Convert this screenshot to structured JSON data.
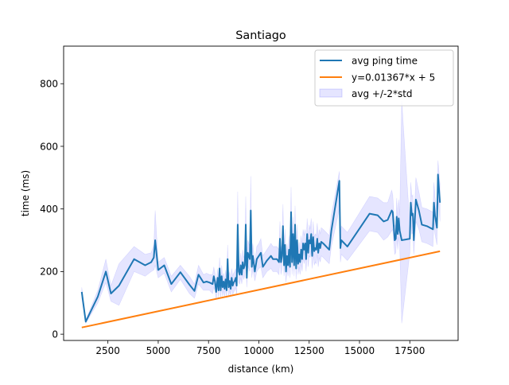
{
  "chart_data": {
    "type": "line",
    "title": "Santiago",
    "xlabel": "distance (km)",
    "ylabel": "time (ms)",
    "xlim": [
      300,
      19900
    ],
    "ylim": [
      -20,
      920
    ],
    "xticks": [
      2500,
      5000,
      7500,
      10000,
      12500,
      15000,
      17500
    ],
    "xtick_labels": [
      "2500",
      "5000",
      "7500",
      "10000",
      "12500",
      "15000",
      "17500"
    ],
    "yticks": [
      0,
      200,
      400,
      600,
      800
    ],
    "ytick_labels": [
      "0",
      "200",
      "400",
      "600",
      "800"
    ],
    "grid": false,
    "legend_position": "top-right",
    "colors": {
      "avg": "#1f77b4",
      "fit": "#ff7f0e",
      "band": "#0000ff"
    },
    "series": [
      {
        "name": "avg ping time",
        "x": [
          1200,
          1400,
          2000,
          2400,
          2650,
          3050,
          3800,
          4350,
          4650,
          4780,
          4850,
          5000,
          5300,
          5650,
          6100,
          6550,
          6800,
          7000,
          7250,
          7400,
          7550,
          7700,
          7760,
          7820,
          7880,
          7950,
          8000,
          8050,
          8100,
          8150,
          8200,
          8250,
          8300,
          8350,
          8400,
          8450,
          8500,
          8550,
          8600,
          8650,
          8700,
          8750,
          8800,
          8850,
          8900,
          8950,
          9000,
          9050,
          9100,
          9150,
          9200,
          9250,
          9300,
          9350,
          9400,
          9450,
          9500,
          9550,
          9600,
          9650,
          9700,
          9800,
          9900,
          10000,
          10100,
          10200,
          10400,
          10600,
          10700,
          10800,
          10900,
          11000,
          11050,
          11100,
          11150,
          11200,
          11250,
          11300,
          11350,
          11400,
          11450,
          11500,
          11550,
          11600,
          11650,
          11700,
          11750,
          11800,
          11850,
          11900,
          11950,
          12000,
          12050,
          12100,
          12150,
          12200,
          12250,
          12300,
          12350,
          12400,
          12450,
          12500,
          12550,
          12600,
          12650,
          12700,
          12750,
          12800,
          12850,
          12900,
          12950,
          13000,
          13050,
          13100,
          13200,
          13500,
          13600,
          14000,
          14050,
          14100,
          14400,
          15500,
          15900,
          16200,
          16400,
          16600,
          16650,
          16750,
          16800,
          16850,
          16900,
          16950,
          17000,
          17100,
          17500,
          17550,
          17600,
          17650,
          17700,
          17800,
          17950,
          18100,
          18350,
          18650,
          18700,
          18750,
          18850,
          18900,
          19000
        ],
        "y": [
          135,
          40,
          120,
          200,
          130,
          155,
          240,
          220,
          230,
          245,
          300,
          205,
          220,
          160,
          198,
          158,
          138,
          190,
          165,
          168,
          165,
          160,
          185,
          168,
          135,
          180,
          140,
          210,
          140,
          185,
          150,
          168,
          145,
          175,
          140,
          240,
          150,
          170,
          145,
          180,
          155,
          165,
          170,
          180,
          155,
          350,
          200,
          190,
          220,
          190,
          230,
          210,
          220,
          350,
          180,
          260,
          250,
          240,
          395,
          215,
          250,
          200,
          240,
          250,
          260,
          215,
          235,
          250,
          240,
          240,
          240,
          230,
          305,
          230,
          250,
          345,
          220,
          285,
          200,
          250,
          220,
          270,
          215,
          390,
          230,
          320,
          220,
          350,
          210,
          300,
          225,
          255,
          230,
          270,
          240,
          290,
          270,
          290,
          240,
          320,
          260,
          300,
          290,
          320,
          250,
          310,
          265,
          275,
          270,
          305,
          260,
          290,
          275,
          295,
          290,
          270,
          330,
          490,
          275,
          300,
          280,
          385,
          380,
          360,
          365,
          395,
          390,
          300,
          305,
          375,
          320,
          370,
          330,
          300,
          305,
          420,
          380,
          385,
          300,
          430,
          395,
          350,
          345,
          335,
          420,
          380,
          340,
          510,
          420
        ],
        "lo": [
          115,
          35,
          100,
          165,
          105,
          92,
          200,
          185,
          200,
          205,
          220,
          180,
          195,
          135,
          175,
          130,
          115,
          160,
          140,
          140,
          140,
          130,
          150,
          140,
          110,
          150,
          115,
          175,
          115,
          150,
          120,
          140,
          120,
          145,
          115,
          200,
          120,
          140,
          120,
          150,
          125,
          135,
          140,
          150,
          125,
          250,
          165,
          160,
          180,
          160,
          190,
          175,
          185,
          260,
          150,
          220,
          210,
          200,
          285,
          180,
          210,
          170,
          200,
          210,
          215,
          180,
          200,
          210,
          200,
          200,
          200,
          190,
          250,
          190,
          210,
          275,
          185,
          235,
          165,
          210,
          185,
          225,
          180,
          310,
          190,
          265,
          185,
          290,
          175,
          250,
          190,
          215,
          190,
          225,
          200,
          245,
          225,
          245,
          200,
          270,
          215,
          250,
          245,
          270,
          210,
          260,
          220,
          230,
          225,
          255,
          215,
          245,
          230,
          250,
          245,
          225,
          280,
          400,
          230,
          255,
          235,
          330,
          325,
          300,
          310,
          330,
          335,
          255,
          260,
          315,
          270,
          310,
          280,
          35,
          260,
          355,
          320,
          325,
          255,
          360,
          335,
          295,
          290,
          280,
          355,
          320,
          285,
          440,
          360
        ],
        "hi": [
          150,
          45,
          140,
          240,
          155,
          225,
          280,
          255,
          260,
          285,
          395,
          230,
          245,
          185,
          220,
          185,
          160,
          220,
          190,
          195,
          190,
          190,
          215,
          195,
          160,
          210,
          165,
          245,
          165,
          220,
          180,
          195,
          170,
          205,
          165,
          285,
          180,
          200,
          170,
          210,
          185,
          195,
          200,
          210,
          185,
          455,
          235,
          220,
          260,
          220,
          270,
          245,
          255,
          440,
          210,
          300,
          290,
          280,
          505,
          250,
          290,
          230,
          280,
          290,
          305,
          250,
          270,
          290,
          280,
          280,
          280,
          270,
          360,
          270,
          290,
          415,
          255,
          335,
          235,
          290,
          255,
          315,
          250,
          470,
          270,
          375,
          255,
          410,
          245,
          350,
          260,
          295,
          270,
          315,
          280,
          335,
          315,
          335,
          280,
          370,
          305,
          350,
          335,
          370,
          290,
          360,
          310,
          320,
          315,
          355,
          305,
          335,
          320,
          340,
          335,
          315,
          380,
          520,
          320,
          345,
          325,
          440,
          435,
          420,
          420,
          460,
          445,
          345,
          350,
          435,
          370,
          430,
          380,
          745,
          350,
          485,
          440,
          445,
          345,
          500,
          455,
          405,
          400,
          390,
          485,
          440,
          395,
          555,
          480
        ]
      },
      {
        "name": "y=0.01367*x + 5",
        "x": [
          1200,
          19000
        ],
        "y": [
          21.4,
          264.7
        ]
      }
    ],
    "band_name": "avg +/-2*std"
  }
}
